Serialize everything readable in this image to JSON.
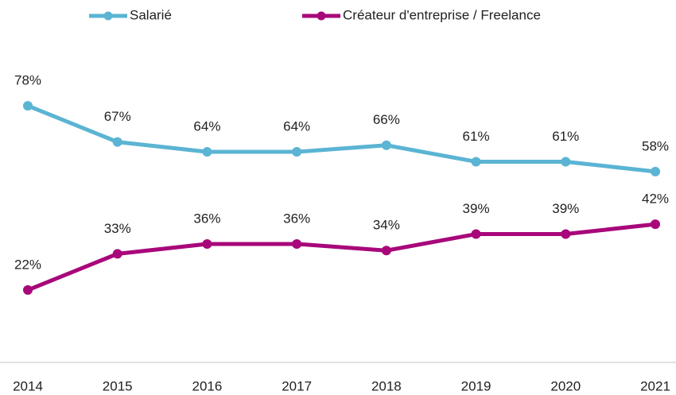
{
  "chart_data": {
    "type": "line",
    "categories": [
      "2014",
      "2015",
      "2016",
      "2017",
      "2018",
      "2019",
      "2020",
      "2021"
    ],
    "series": [
      {
        "name": "Salarié",
        "color": "#5bb4d3",
        "values": [
          78,
          67,
          64,
          64,
          66,
          61,
          61,
          58
        ],
        "value_labels": [
          "78%",
          "67%",
          "64%",
          "64%",
          "66%",
          "61%",
          "61%",
          "58%"
        ]
      },
      {
        "name": "Créateur d'entreprise / Freelance",
        "color": "#a8077a",
        "values": [
          22,
          33,
          36,
          36,
          34,
          39,
          39,
          42
        ],
        "value_labels": [
          "22%",
          "33%",
          "36%",
          "36%",
          "34%",
          "39%",
          "39%",
          "42%"
        ]
      }
    ],
    "ylim": [
      0,
      100
    ],
    "legend": "top"
  }
}
